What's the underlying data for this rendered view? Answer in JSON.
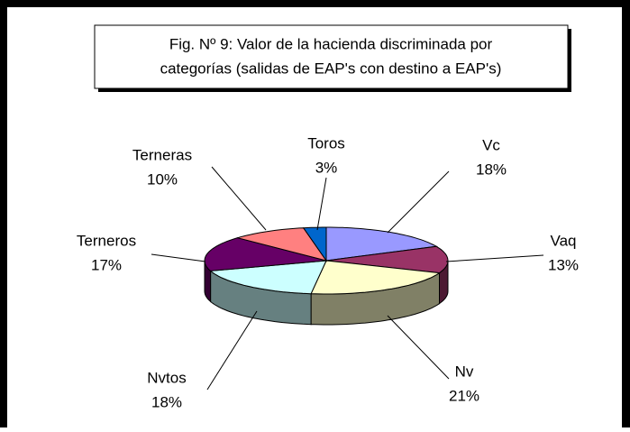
{
  "chart_data": {
    "type": "pie3d",
    "title": [
      "Fig. Nº 9: Valor de la hacienda discriminada por",
      "categorías (salidas de EAP's con destino a EAP's)"
    ],
    "categories": [
      "Vc",
      "Vaq",
      "Nv",
      "Nvtos",
      "Terneros",
      "Terneras",
      "Toros"
    ],
    "values": [
      18,
      13,
      21,
      18,
      17,
      10,
      3
    ],
    "value_labels": [
      "18%",
      "13%",
      "21%",
      "18%",
      "17%",
      "10%",
      "3%"
    ],
    "colors": [
      "#9999ff",
      "#993366",
      "#ffffcc",
      "#ccffff",
      "#660066",
      "#ff8080",
      "#0066cc"
    ]
  }
}
